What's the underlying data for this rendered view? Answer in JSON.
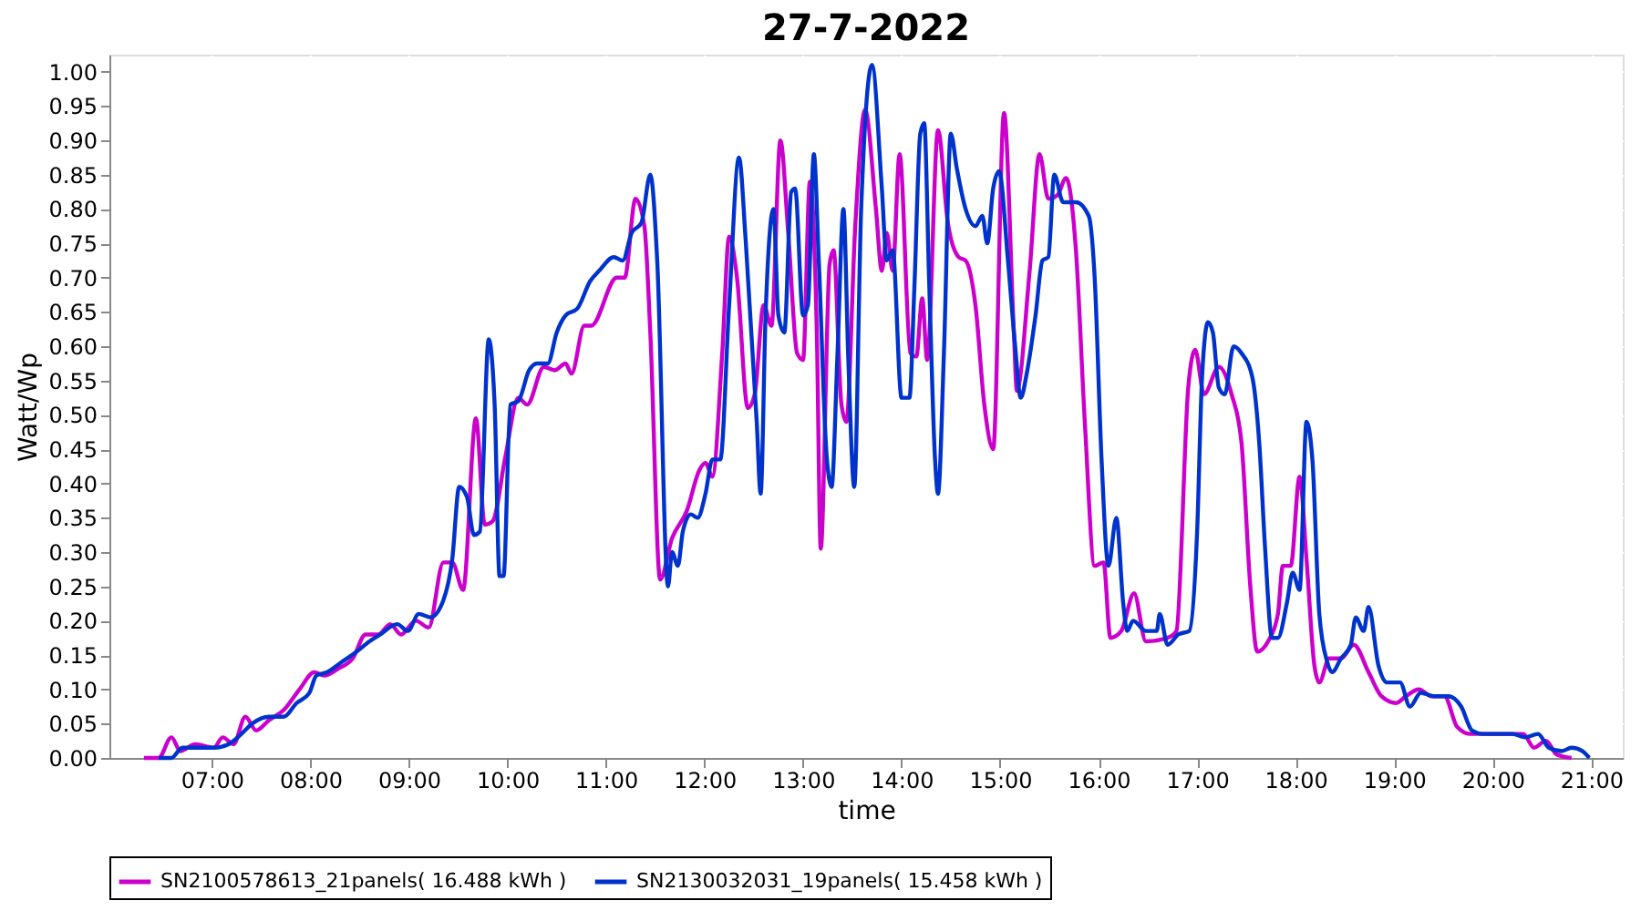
{
  "chart_data": {
    "type": "line",
    "title": "27-7-2022",
    "xlabel": "time",
    "ylabel": "Watt/Wp",
    "xlim": [
      5.96,
      21.32
    ],
    "ylim": [
      0,
      1.025
    ],
    "xticks": [
      {
        "value": 7,
        "label": "07:00"
      },
      {
        "value": 8,
        "label": "08:00"
      },
      {
        "value": 9,
        "label": "09:00"
      },
      {
        "value": 10,
        "label": "10:00"
      },
      {
        "value": 11,
        "label": "11:00"
      },
      {
        "value": 12,
        "label": "12:00"
      },
      {
        "value": 13,
        "label": "13:00"
      },
      {
        "value": 14,
        "label": "14:00"
      },
      {
        "value": 15,
        "label": "15:00"
      },
      {
        "value": 16,
        "label": "16:00"
      },
      {
        "value": 17,
        "label": "17:00"
      },
      {
        "value": 18,
        "label": "18:00"
      },
      {
        "value": 19,
        "label": "19:00"
      },
      {
        "value": 20,
        "label": "20:00"
      },
      {
        "value": 21,
        "label": "21:00"
      }
    ],
    "yticks": [
      {
        "value": 0,
        "label": "0.00"
      },
      {
        "value": 0.05,
        "label": "0.05"
      },
      {
        "value": 0.1,
        "label": "0.10"
      },
      {
        "value": 0.15,
        "label": "0.15"
      },
      {
        "value": 0.2,
        "label": "0.20"
      },
      {
        "value": 0.25,
        "label": "0.25"
      },
      {
        "value": 0.3,
        "label": "0.30"
      },
      {
        "value": 0.35,
        "label": "0.35"
      },
      {
        "value": 0.4,
        "label": "0.40"
      },
      {
        "value": 0.45,
        "label": "0.45"
      },
      {
        "value": 0.5,
        "label": "0.50"
      },
      {
        "value": 0.55,
        "label": "0.55"
      },
      {
        "value": 0.6,
        "label": "0.60"
      },
      {
        "value": 0.65,
        "label": "0.65"
      },
      {
        "value": 0.7,
        "label": "0.70"
      },
      {
        "value": 0.75,
        "label": "0.75"
      },
      {
        "value": 0.8,
        "label": "0.80"
      },
      {
        "value": 0.85,
        "label": "0.85"
      },
      {
        "value": 0.9,
        "label": "0.90"
      },
      {
        "value": 0.95,
        "label": "0.95"
      },
      {
        "value": 1.0,
        "label": "1.00"
      }
    ],
    "grid": true,
    "legend": "bottom",
    "line_style": "solid",
    "series": [
      {
        "name": "SN2100578613_21panels( 16.488 kWh )",
        "color": "#cc00cc",
        "x": [
          6.31,
          6.46,
          6.59,
          6.68,
          6.83,
          7.02,
          7.11,
          7.22,
          7.34,
          7.45,
          7.58,
          7.73,
          7.89,
          8.04,
          8.14,
          8.28,
          8.43,
          8.56,
          8.69,
          8.81,
          8.92,
          9.07,
          9.2,
          9.35,
          9.44,
          9.55,
          9.68,
          9.77,
          9.85,
          9.98,
          10.11,
          10.2,
          10.37,
          10.48,
          10.59,
          10.65,
          10.78,
          10.85,
          11.11,
          11.19,
          11.3,
          11.39,
          11.45,
          11.55,
          11.67,
          11.82,
          11.95,
          12.01,
          12.08,
          12.18,
          12.25,
          12.33,
          12.44,
          12.51,
          12.6,
          12.68,
          12.77,
          12.85,
          12.94,
          13.0,
          13.07,
          13.14,
          13.18,
          13.27,
          13.31,
          13.39,
          13.44,
          13.53,
          13.63,
          13.74,
          13.8,
          13.85,
          13.91,
          13.98,
          14.09,
          14.15,
          14.21,
          14.26,
          14.37,
          14.47,
          14.58,
          14.65,
          14.75,
          14.84,
          14.93,
          15.04,
          15.14,
          15.17,
          15.3,
          15.4,
          15.49,
          15.58,
          15.67,
          15.77,
          15.86,
          15.96,
          16.05,
          16.12,
          16.23,
          16.36,
          16.48,
          16.7,
          16.79,
          16.91,
          16.98,
          17.07,
          17.22,
          17.35,
          17.45,
          17.54,
          17.61,
          17.72,
          17.82,
          17.87,
          17.95,
          18.04,
          18.11,
          18.19,
          18.24,
          18.34,
          18.46,
          18.59,
          18.74,
          18.87,
          19.02,
          19.12,
          19.25,
          19.38,
          19.51,
          19.64,
          19.77,
          19.9,
          20.05,
          20.18,
          20.31,
          20.42,
          20.54,
          20.65,
          20.8
        ],
        "values": [
          0.0,
          0.0,
          0.03,
          0.01,
          0.02,
          0.015,
          0.03,
          0.02,
          0.06,
          0.04,
          0.055,
          0.07,
          0.1,
          0.125,
          0.12,
          0.13,
          0.145,
          0.18,
          0.18,
          0.195,
          0.18,
          0.2,
          0.19,
          0.285,
          0.285,
          0.245,
          0.495,
          0.34,
          0.345,
          0.44,
          0.525,
          0.515,
          0.57,
          0.565,
          0.575,
          0.56,
          0.63,
          0.63,
          0.7,
          0.7,
          0.815,
          0.775,
          0.62,
          0.26,
          0.32,
          0.36,
          0.42,
          0.43,
          0.41,
          0.59,
          0.76,
          0.7,
          0.51,
          0.53,
          0.66,
          0.63,
          0.9,
          0.765,
          0.59,
          0.58,
          0.84,
          0.62,
          0.305,
          0.72,
          0.74,
          0.515,
          0.49,
          0.775,
          0.945,
          0.8,
          0.71,
          0.765,
          0.71,
          0.88,
          0.59,
          0.585,
          0.67,
          0.58,
          0.915,
          0.78,
          0.73,
          0.725,
          0.66,
          0.515,
          0.45,
          0.94,
          0.62,
          0.535,
          0.71,
          0.88,
          0.815,
          0.82,
          0.845,
          0.74,
          0.49,
          0.28,
          0.285,
          0.175,
          0.185,
          0.24,
          0.17,
          0.175,
          0.185,
          0.54,
          0.595,
          0.53,
          0.57,
          0.53,
          0.46,
          0.25,
          0.155,
          0.17,
          0.21,
          0.28,
          0.28,
          0.41,
          0.29,
          0.135,
          0.11,
          0.145,
          0.145,
          0.165,
          0.125,
          0.09,
          0.08,
          0.09,
          0.1,
          0.09,
          0.09,
          0.045,
          0.035,
          0.035,
          0.035,
          0.035,
          0.035,
          0.015,
          0.025,
          0.005,
          0.0
        ]
      },
      {
        "name": "SN2130032031_19panels( 15.458 kWh )",
        "color": "#0033cc",
        "x": [
          6.46,
          6.59,
          6.7,
          6.83,
          7.02,
          7.17,
          7.3,
          7.41,
          7.58,
          7.73,
          7.86,
          7.99,
          8.06,
          8.17,
          8.32,
          8.47,
          8.6,
          8.71,
          8.88,
          8.99,
          9.1,
          9.22,
          9.35,
          9.44,
          9.51,
          9.59,
          9.66,
          9.72,
          9.81,
          9.87,
          9.92,
          9.96,
          10.03,
          10.11,
          10.22,
          10.3,
          10.41,
          10.5,
          10.59,
          10.71,
          10.84,
          10.93,
          11.08,
          11.17,
          11.26,
          11.36,
          11.45,
          11.52,
          11.63,
          11.67,
          11.73,
          11.78,
          11.86,
          11.93,
          12.01,
          12.08,
          12.16,
          12.25,
          12.35,
          12.42,
          12.53,
          12.57,
          12.62,
          12.7,
          12.75,
          12.81,
          12.88,
          12.92,
          13.0,
          13.05,
          13.11,
          13.16,
          13.24,
          13.29,
          13.35,
          13.41,
          13.46,
          13.52,
          13.59,
          13.7,
          13.8,
          13.85,
          13.91,
          14.0,
          14.08,
          14.13,
          14.19,
          14.23,
          14.28,
          14.34,
          14.37,
          14.43,
          14.5,
          14.56,
          14.65,
          14.75,
          14.82,
          14.87,
          14.93,
          14.99,
          15.08,
          15.15,
          15.21,
          15.27,
          15.36,
          15.43,
          15.49,
          15.55,
          15.64,
          15.77,
          15.9,
          15.96,
          16.03,
          16.1,
          16.18,
          16.25,
          16.29,
          16.35,
          16.48,
          16.59,
          16.62,
          16.7,
          16.81,
          16.92,
          17.0,
          17.05,
          17.11,
          17.16,
          17.22,
          17.28,
          17.37,
          17.45,
          17.56,
          17.63,
          17.69,
          17.76,
          17.82,
          17.91,
          17.97,
          18.04,
          18.11,
          18.17,
          18.24,
          18.32,
          18.37,
          18.46,
          18.56,
          18.61,
          18.69,
          18.74,
          18.84,
          18.93,
          19.06,
          19.16,
          19.27,
          19.4,
          19.55,
          19.68,
          19.79,
          19.9,
          20.05,
          20.2,
          20.33,
          20.46,
          20.57,
          20.7,
          20.8,
          20.91,
          20.98
        ],
        "values": [
          0.0,
          0.0,
          0.015,
          0.015,
          0.015,
          0.02,
          0.035,
          0.05,
          0.06,
          0.06,
          0.08,
          0.095,
          0.12,
          0.125,
          0.14,
          0.155,
          0.17,
          0.18,
          0.195,
          0.185,
          0.21,
          0.205,
          0.23,
          0.29,
          0.395,
          0.38,
          0.325,
          0.33,
          0.61,
          0.515,
          0.265,
          0.265,
          0.515,
          0.52,
          0.565,
          0.575,
          0.575,
          0.62,
          0.645,
          0.655,
          0.695,
          0.71,
          0.73,
          0.725,
          0.765,
          0.78,
          0.85,
          0.725,
          0.25,
          0.3,
          0.28,
          0.33,
          0.355,
          0.35,
          0.385,
          0.435,
          0.435,
          0.66,
          0.875,
          0.75,
          0.49,
          0.385,
          0.645,
          0.8,
          0.645,
          0.62,
          0.825,
          0.83,
          0.645,
          0.66,
          0.88,
          0.725,
          0.44,
          0.395,
          0.59,
          0.8,
          0.58,
          0.395,
          0.8,
          1.01,
          0.83,
          0.725,
          0.74,
          0.525,
          0.525,
          0.685,
          0.91,
          0.925,
          0.695,
          0.435,
          0.385,
          0.59,
          0.91,
          0.86,
          0.8,
          0.775,
          0.79,
          0.75,
          0.83,
          0.855,
          0.725,
          0.605,
          0.525,
          0.56,
          0.645,
          0.725,
          0.73,
          0.85,
          0.81,
          0.81,
          0.79,
          0.7,
          0.435,
          0.28,
          0.35,
          0.225,
          0.185,
          0.2,
          0.185,
          0.185,
          0.21,
          0.165,
          0.18,
          0.185,
          0.33,
          0.555,
          0.635,
          0.62,
          0.54,
          0.53,
          0.6,
          0.59,
          0.555,
          0.46,
          0.305,
          0.175,
          0.175,
          0.225,
          0.27,
          0.245,
          0.49,
          0.435,
          0.21,
          0.14,
          0.125,
          0.145,
          0.165,
          0.205,
          0.185,
          0.22,
          0.135,
          0.11,
          0.11,
          0.075,
          0.095,
          0.09,
          0.09,
          0.075,
          0.04,
          0.035,
          0.035,
          0.035,
          0.03,
          0.035,
          0.015,
          0.01,
          0.015,
          0.01,
          0.0
        ]
      }
    ]
  }
}
